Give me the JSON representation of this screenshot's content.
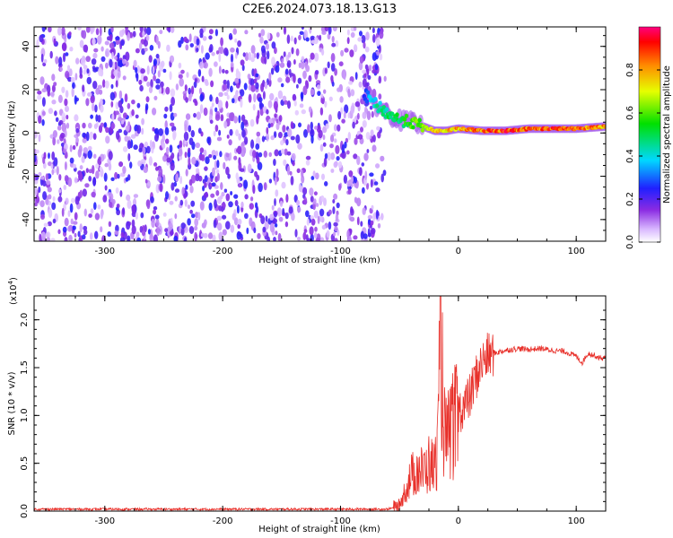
{
  "title": "C2E6.2024.073.18.13.G13",
  "chart_data": [
    {
      "type": "heatmap",
      "xlabel": "Height of straight line (km)",
      "ylabel": "Frequency (Hz)",
      "xlim": [
        -360,
        125
      ],
      "ylim": [
        -50,
        49
      ],
      "x_ticks": [
        -300,
        -200,
        -100,
        0,
        100
      ],
      "y_ticks": [
        -40,
        -20,
        0,
        20,
        40
      ],
      "noise_region_x": [
        -360,
        -65
      ],
      "signal_ridge": {
        "x": [
          -80,
          -70,
          -60,
          -50,
          -40,
          -30,
          -20,
          -10,
          0,
          20,
          40,
          60,
          80,
          100,
          125
        ],
        "frequency": [
          18,
          13,
          9,
          6,
          5,
          3,
          1,
          1,
          2,
          1,
          1,
          2,
          2,
          2,
          3
        ],
        "amplitude": [
          0.3,
          0.45,
          0.5,
          0.55,
          0.6,
          0.7,
          0.85,
          0.8,
          0.85,
          0.9,
          0.95,
          0.9,
          0.95,
          0.9,
          0.85
        ]
      },
      "colorbar": {
        "label": "Normalized spectral amplitude",
        "ticks": [
          "0.0",
          "0.2",
          "0.4",
          "0.6",
          "0.8"
        ],
        "range": [
          0,
          1
        ]
      }
    },
    {
      "type": "line",
      "xlabel": "Height of straight line (km)",
      "ylabel": "SNR (10 * v/v)",
      "scale_label": "(x10",
      "scale_exp": "4",
      "scale_close": ")",
      "xlim": [
        -360,
        125
      ],
      "ylim": [
        0,
        2.25
      ],
      "x_ticks": [
        -300,
        -200,
        -100,
        0,
        100
      ],
      "y_ticks": [
        0.0,
        0.5,
        1.0,
        1.5,
        2.0
      ],
      "series": [
        {
          "color": "#e8302a",
          "x": [
            -360,
            -300,
            -200,
            -100,
            -60,
            -50,
            -45,
            -40,
            -35,
            -30,
            -25,
            -20,
            -17,
            -15,
            -12,
            -10,
            -5,
            0,
            5,
            10,
            15,
            20,
            25,
            30,
            40,
            50,
            60,
            70,
            80,
            90,
            100,
            105,
            110,
            115,
            120,
            125
          ],
          "y": [
            0.02,
            0.02,
            0.02,
            0.02,
            0.02,
            0.05,
            0.25,
            0.4,
            0.5,
            0.45,
            0.55,
            0.5,
            0.9,
            2.2,
            0.9,
            0.8,
            1.0,
            1.05,
            1.1,
            1.2,
            1.4,
            1.55,
            1.62,
            1.65,
            1.68,
            1.7,
            1.69,
            1.7,
            1.68,
            1.67,
            1.62,
            1.55,
            1.65,
            1.63,
            1.6,
            1.6
          ]
        }
      ]
    }
  ]
}
